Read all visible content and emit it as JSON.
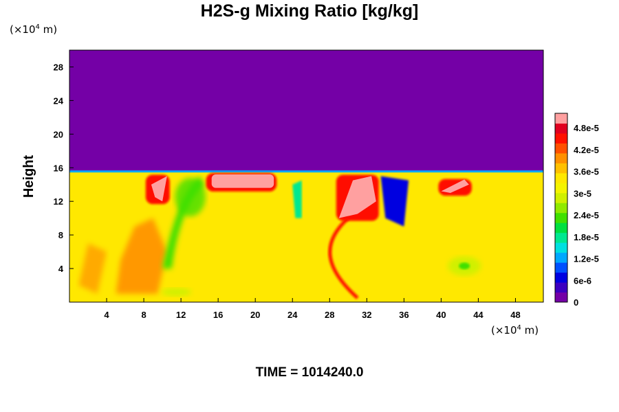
{
  "chart_data": {
    "type": "heatmap",
    "title": "H2S-g Mixing Ratio [kg/kg]",
    "ylabel": "Height",
    "x_unit": "(×10",
    "x_unit_exp": "4",
    "x_unit_tail": " m)",
    "y_unit": "(×10",
    "y_unit_exp": "4",
    "y_unit_tail": " m)",
    "xlim": [
      0,
      51
    ],
    "ylim": [
      0,
      30
    ],
    "x_ticks": [
      4,
      8,
      12,
      16,
      20,
      24,
      28,
      32,
      36,
      40,
      44,
      48
    ],
    "x_tick_labels": [
      "4",
      "8",
      "12",
      "16",
      "20",
      "24",
      "28",
      "32",
      "36",
      "40",
      "44",
      "48"
    ],
    "y_ticks": [
      4,
      8,
      12,
      16,
      20,
      24,
      28
    ],
    "y_tick_labels": [
      "4",
      "8",
      "12",
      "16",
      "20",
      "24",
      "28"
    ],
    "colorbar": {
      "min": 0,
      "max": 5.2e-05,
      "ticks": [
        0,
        6e-06,
        1.2e-05,
        1.8e-05,
        2.4e-05,
        3e-05,
        3.6e-05,
        4.2e-05,
        4.8e-05
      ],
      "tick_labels": [
        "0",
        "6e-6",
        "1.2e-5",
        "1.8e-5",
        "2.4e-5",
        "3e-5",
        "3.6e-5",
        "4.2e-5",
        "4.8e-5"
      ],
      "colors": [
        "#7400a6",
        "#3c00c0",
        "#0000e0",
        "#0050ff",
        "#00a8ff",
        "#00e0e0",
        "#00e890",
        "#00e040",
        "#40e000",
        "#90ea00",
        "#d0f000",
        "#f4f400",
        "#ffe800",
        "#ffc000",
        "#ff9000",
        "#ff5000",
        "#ff1000",
        "#e00020",
        "#ffa0a0"
      ]
    },
    "field": {
      "background_value": 3.5e-05,
      "upper_value": 0,
      "interface_height": 15.6,
      "features": [
        {
          "region": "high plume",
          "x": [
            29,
            33
          ],
          "y": [
            10,
            15
          ],
          "value": 5.2e-05
        },
        {
          "region": "high plume",
          "x": [
            15,
            22
          ],
          "y": [
            13.5,
            15.2
          ],
          "value": 5.2e-05
        },
        {
          "region": "high plume",
          "x": [
            40,
            43
          ],
          "y": [
            13,
            14.5
          ],
          "value": 5.2e-05
        },
        {
          "region": "high plume",
          "x": [
            8.5,
            10.5
          ],
          "y": [
            12,
            15
          ],
          "value": 5.2e-05
        },
        {
          "region": "low cell",
          "x": [
            33,
            37
          ],
          "y": [
            9,
            15
          ],
          "value": 6e-06
        },
        {
          "region": "orange band",
          "x": [
            5,
            9
          ],
          "y": [
            1,
            10
          ],
          "value": 3.9e-05
        },
        {
          "region": "green arc",
          "x": [
            10,
            14
          ],
          "y": [
            3,
            15
          ],
          "value": 2.4e-05
        }
      ]
    },
    "time_label": "TIME = 1014240.0",
    "grid": false,
    "legend_position": "right"
  }
}
